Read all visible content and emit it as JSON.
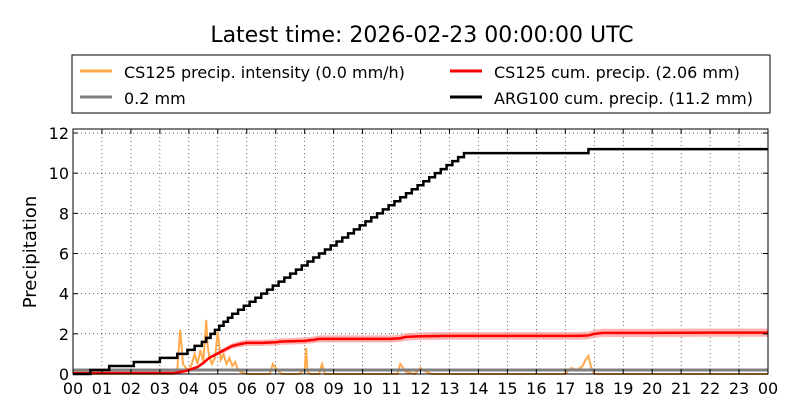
{
  "chart_data": {
    "type": "line",
    "title": "Latest time: 2026-02-23 00:00:00 UTC",
    "ylabel": "Precipitation",
    "xlabel": "",
    "xlim": [
      0,
      24
    ],
    "ylim": [
      0,
      12.2
    ],
    "x_ticks": [
      "00",
      "01",
      "02",
      "03",
      "04",
      "05",
      "06",
      "07",
      "08",
      "09",
      "10",
      "11",
      "12",
      "13",
      "14",
      "15",
      "16",
      "17",
      "18",
      "19",
      "20",
      "21",
      "22",
      "23",
      "00"
    ],
    "y_ticks": [
      0,
      2,
      4,
      6,
      8,
      10,
      12
    ],
    "grid": true,
    "legend_position": "top",
    "legend": [
      {
        "label": "CS125 precip. intensity (0.0 mm/h)",
        "color": "#ffaa4d"
      },
      {
        "label": "CS125 cum. precip. (2.06 mm)",
        "color": "#ff0000"
      },
      {
        "label": "0.2 mm",
        "color": "#808080"
      },
      {
        "label": "ARG100 cum. precip. (11.2 mm)",
        "color": "#000000"
      }
    ],
    "series": [
      {
        "key": "arg100",
        "color": "#000000",
        "step": true,
        "x": [
          0,
          0.6,
          1.25,
          2.1,
          3.0,
          3.6,
          3.95,
          4.2,
          4.45,
          4.6,
          4.75,
          4.9,
          5.05,
          5.2,
          5.35,
          5.5,
          5.7,
          5.9,
          6.1,
          6.3,
          6.5,
          6.7,
          6.9,
          7.1,
          7.3,
          7.5,
          7.7,
          7.9,
          8.1,
          8.3,
          8.5,
          8.7,
          8.9,
          9.1,
          9.3,
          9.5,
          9.7,
          9.9,
          10.1,
          10.3,
          10.5,
          10.7,
          10.9,
          11.1,
          11.3,
          11.5,
          11.7,
          11.9,
          12.1,
          12.3,
          12.5,
          12.7,
          12.9,
          13.1,
          13.3,
          13.5,
          13.7,
          13.9,
          14.1,
          14.3,
          14.5,
          14.7,
          14.9,
          17.8,
          24
        ],
        "y": [
          0,
          0.2,
          0.4,
          0.6,
          0.8,
          1.0,
          1.2,
          1.4,
          1.6,
          1.8,
          2.0,
          2.2,
          2.4,
          2.6,
          2.8,
          3.0,
          3.2,
          3.4,
          3.6,
          3.8,
          4.0,
          4.2,
          4.4,
          4.6,
          4.8,
          5.0,
          5.2,
          5.4,
          5.6,
          5.8,
          6.0,
          6.2,
          6.4,
          6.6,
          6.8,
          7.0,
          7.2,
          7.4,
          7.6,
          7.8,
          8.0,
          8.2,
          8.4,
          8.6,
          8.8,
          9.0,
          9.2,
          9.4,
          9.6,
          9.8,
          10.0,
          10.2,
          10.4,
          10.6,
          10.8,
          11.0,
          11.0,
          11.0,
          11.0,
          11.0,
          11.0,
          11.0,
          11.0,
          11.2,
          11.2
        ]
      },
      {
        "key": "cs125_cum",
        "color": "#ff0000",
        "band_color": "#ff9999",
        "band_fraction": 0.1,
        "x": [
          0,
          3.5,
          3.9,
          4.1,
          4.3,
          4.5,
          4.7,
          4.9,
          5.1,
          5.3,
          5.5,
          5.8,
          6.0,
          6.5,
          7.0,
          7.2,
          8.0,
          8.3,
          8.5,
          9.0,
          10.0,
          11.0,
          11.3,
          11.5,
          12.0,
          13.0,
          14.0,
          15.0,
          16.0,
          17.0,
          17.5,
          17.8,
          18.0,
          18.3,
          20.0,
          22.0,
          24.0
        ],
        "y": [
          0.05,
          0.05,
          0.15,
          0.25,
          0.35,
          0.55,
          0.8,
          0.95,
          1.1,
          1.25,
          1.4,
          1.5,
          1.55,
          1.55,
          1.58,
          1.62,
          1.65,
          1.7,
          1.75,
          1.75,
          1.75,
          1.75,
          1.78,
          1.85,
          1.88,
          1.9,
          1.9,
          1.9,
          1.9,
          1.9,
          1.9,
          1.92,
          2.0,
          2.05,
          2.05,
          2.06,
          2.06
        ]
      },
      {
        "key": "threshold",
        "color": "#808080",
        "x": [
          0,
          24
        ],
        "y": [
          0.2,
          0.2
        ]
      },
      {
        "key": "cs125_intensity",
        "color": "#ffaa4d",
        "x": [
          0,
          3.5,
          3.6,
          3.7,
          3.8,
          3.9,
          4.0,
          4.1,
          4.2,
          4.3,
          4.4,
          4.5,
          4.6,
          4.65,
          4.7,
          4.8,
          4.9,
          5.0,
          5.1,
          5.2,
          5.3,
          5.4,
          5.5,
          5.6,
          5.7,
          5.8,
          6.0,
          6.5,
          6.8,
          6.9,
          7.0,
          7.2,
          7.8,
          8.0,
          8.05,
          8.1,
          8.2,
          8.5,
          8.6,
          8.7,
          9.0,
          11.0,
          11.2,
          11.3,
          11.4,
          11.5,
          11.8,
          12.0,
          12.2,
          12.4,
          13.0,
          15.0,
          17.0,
          17.2,
          17.4,
          17.6,
          17.7,
          17.8,
          17.9,
          18.0,
          24.0
        ],
        "y": [
          0,
          0,
          0.2,
          2.2,
          0.5,
          0.3,
          0.2,
          0.5,
          1.0,
          0.5,
          1.2,
          0.6,
          2.7,
          1.4,
          0.9,
          0.5,
          0.8,
          2.1,
          0.7,
          1.0,
          0.5,
          0.8,
          0.4,
          0.6,
          0.2,
          0.1,
          0,
          0,
          0,
          0.5,
          0.3,
          0,
          0,
          0.2,
          1.3,
          0.1,
          0,
          0,
          0.5,
          0,
          0,
          0,
          0,
          0.5,
          0.3,
          0.1,
          0,
          0.3,
          0.1,
          0,
          0,
          0,
          0,
          0.3,
          0.2,
          0.4,
          0.7,
          0.9,
          0.3,
          0,
          0
        ]
      }
    ]
  }
}
